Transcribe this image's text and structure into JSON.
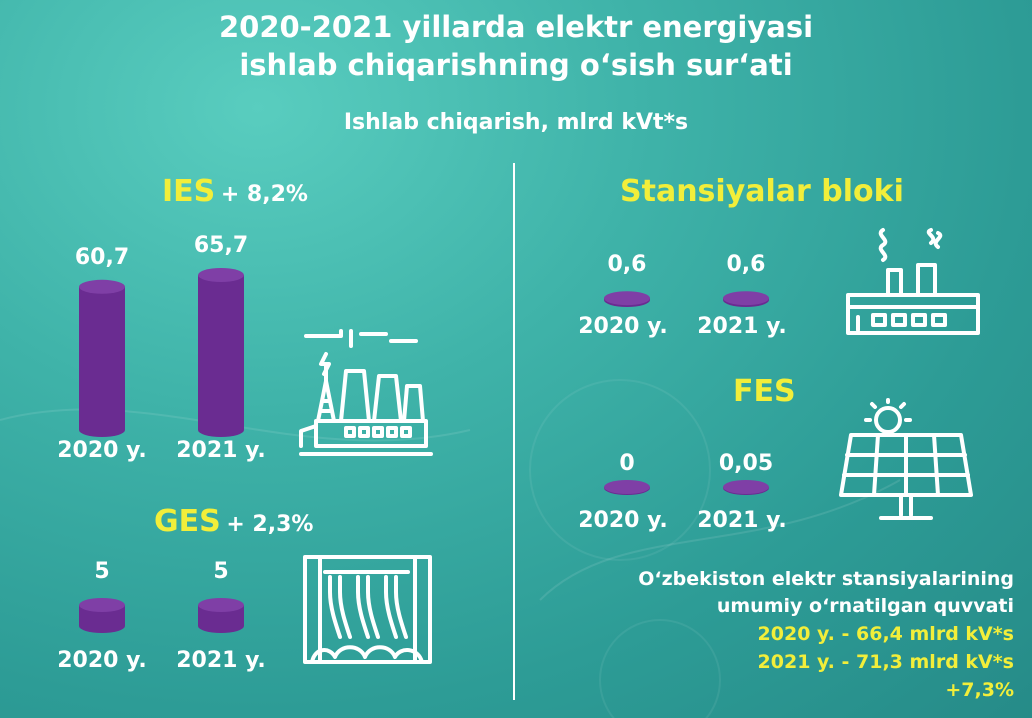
{
  "title_line1": "2020-2021 yillarda elektr energiyasi",
  "title_line2": "ishlab chiqarishning o‘sish sur‘ati",
  "subtitle": "Ishlab chiqarish, mlrd kVt*s",
  "chart_data": [
    {
      "type": "bar",
      "title": "IES",
      "change": "+ 8,2%",
      "categories": [
        "2020 y.",
        "2021 y."
      ],
      "values": [
        60.7,
        65.7
      ],
      "labels": [
        "60,7",
        "65,7"
      ]
    },
    {
      "type": "bar",
      "title": "GES",
      "change": "+ 2,3%",
      "categories": [
        "2020 y.",
        "2021 y."
      ],
      "values": [
        5,
        5
      ],
      "labels": [
        "5",
        "5"
      ]
    },
    {
      "type": "bar",
      "title": "Stansiyalar bloki",
      "categories": [
        "2020 y.",
        "2021 y."
      ],
      "values": [
        0.6,
        0.6
      ],
      "labels": [
        "0,6",
        "0,6"
      ]
    },
    {
      "type": "bar",
      "title": "FES",
      "categories": [
        "2020 y.",
        "2021 y."
      ],
      "values": [
        0,
        0.05
      ],
      "labels": [
        "0",
        "0,05"
      ]
    }
  ],
  "note": {
    "line1": "O‘zbekiston elektr stansiyalarining",
    "line2": "umumiy o‘rnatilgan quvvati",
    "line3": "2020 y. - 66,4 mlrd kV*s",
    "line4": "2021 y. - 71,3 mlrd kV*s",
    "line5": "+7,3%"
  },
  "colors": {
    "bar": "#6a2c91",
    "bar_top": "#7f3fa6",
    "accent": "#f2ee3a",
    "text": "#ffffff"
  },
  "icons": [
    "thermal-power-plant-icon",
    "hydro-power-plant-icon",
    "factory-icon",
    "solar-panel-icon"
  ]
}
